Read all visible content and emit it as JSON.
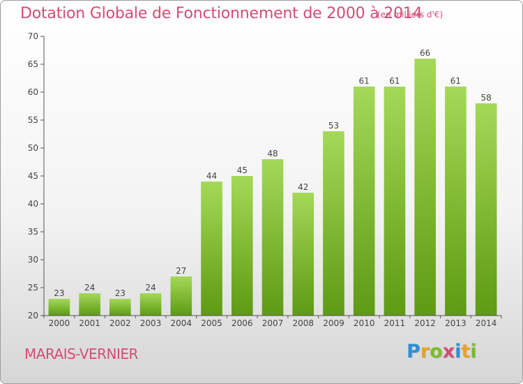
{
  "header": {
    "title": "Dotation Globale de Fonctionnement de 2000 à 2014",
    "unit": "(en milliers d'€)"
  },
  "footer": {
    "commune": "MARAIS-VERNIER",
    "logo": {
      "letters": [
        "P",
        "r",
        "o",
        "x",
        "i",
        "t",
        "i"
      ],
      "colors": [
        "#2f8fd6",
        "#e9a227",
        "#7cbb2a",
        "#d64b73",
        "#2f8fd6",
        "#e9a227",
        "#7cbb2a"
      ]
    }
  },
  "chart_data": {
    "type": "bar",
    "title": "Dotation Globale de Fonctionnement de 2000 à 2014",
    "subtitle": "(en milliers d'€)",
    "xlabel": "",
    "ylabel": "",
    "categories": [
      "2000",
      "2001",
      "2002",
      "2003",
      "2004",
      "2005",
      "2006",
      "2007",
      "2008",
      "2009",
      "2010",
      "2011",
      "2012",
      "2013",
      "2014"
    ],
    "values": [
      23,
      24,
      23,
      24,
      27,
      44,
      45,
      48,
      42,
      53,
      61,
      61,
      66,
      61,
      58
    ],
    "ylim": [
      20,
      70
    ],
    "yticks": [
      20,
      25,
      30,
      35,
      40,
      45,
      50,
      55,
      60,
      65,
      70
    ],
    "grid": false,
    "data_labels": true,
    "colors": {
      "bar_light": "#a4d957",
      "bar_dark": "#5e9a14",
      "axis": "#555555"
    }
  }
}
